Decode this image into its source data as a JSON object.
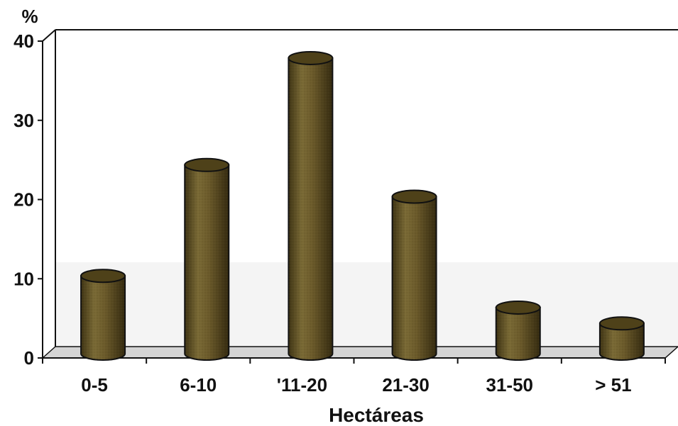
{
  "chart_data": {
    "type": "bar",
    "style": "3d-cylinder",
    "categories": [
      "0-5",
      "6-10",
      "'11-20",
      "21-30",
      "31-50",
      "> 51"
    ],
    "values": [
      10,
      24,
      37.5,
      20,
      6,
      4
    ],
    "ylabel": "%",
    "xlabel": "Hectáreas",
    "ylim": [
      0,
      40
    ],
    "yticks": [
      "0",
      "10",
      "20",
      "30",
      "40"
    ],
    "grid": false,
    "legend": "none",
    "colors": {
      "bar_fill": "#6b5a2a",
      "bar_dark": "#3f3414",
      "bar_light": "#8a7740",
      "floor": "#d4d4d4",
      "back_wall": "#f5f5f5",
      "axis": "#111111"
    }
  }
}
